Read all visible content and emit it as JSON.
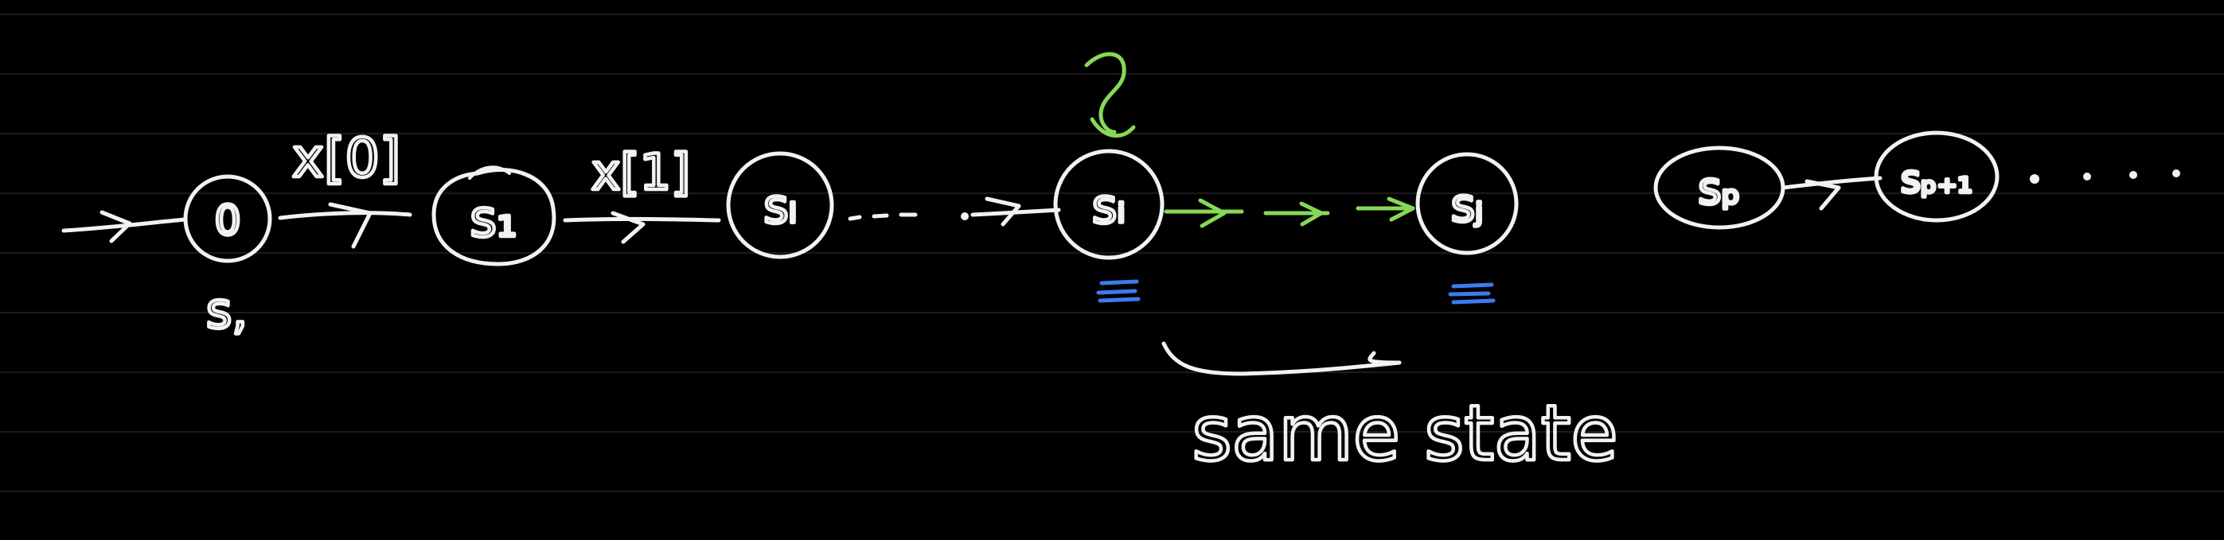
{
  "colors": {
    "background": "#000000",
    "ink": "#f2f2f2",
    "highlight_green": "#86d957",
    "highlight_blue": "#3a7bef",
    "ruled_line": "#1c1c1c"
  },
  "states": {
    "start": "0",
    "start_label": "s,",
    "s1": "s₁",
    "s2": "sₗ",
    "si": "sᵢ",
    "sj": "sⱼ",
    "sp": "sₚ",
    "sp1": "sₚ₊₁"
  },
  "edges": {
    "x0": "x[0]",
    "x1": "x[1]"
  },
  "annotations": {
    "question_mark": "?",
    "ellipsis_middle": "- - -",
    "ellipsis_end": "· · · ·",
    "bracket_caption": "same state"
  }
}
